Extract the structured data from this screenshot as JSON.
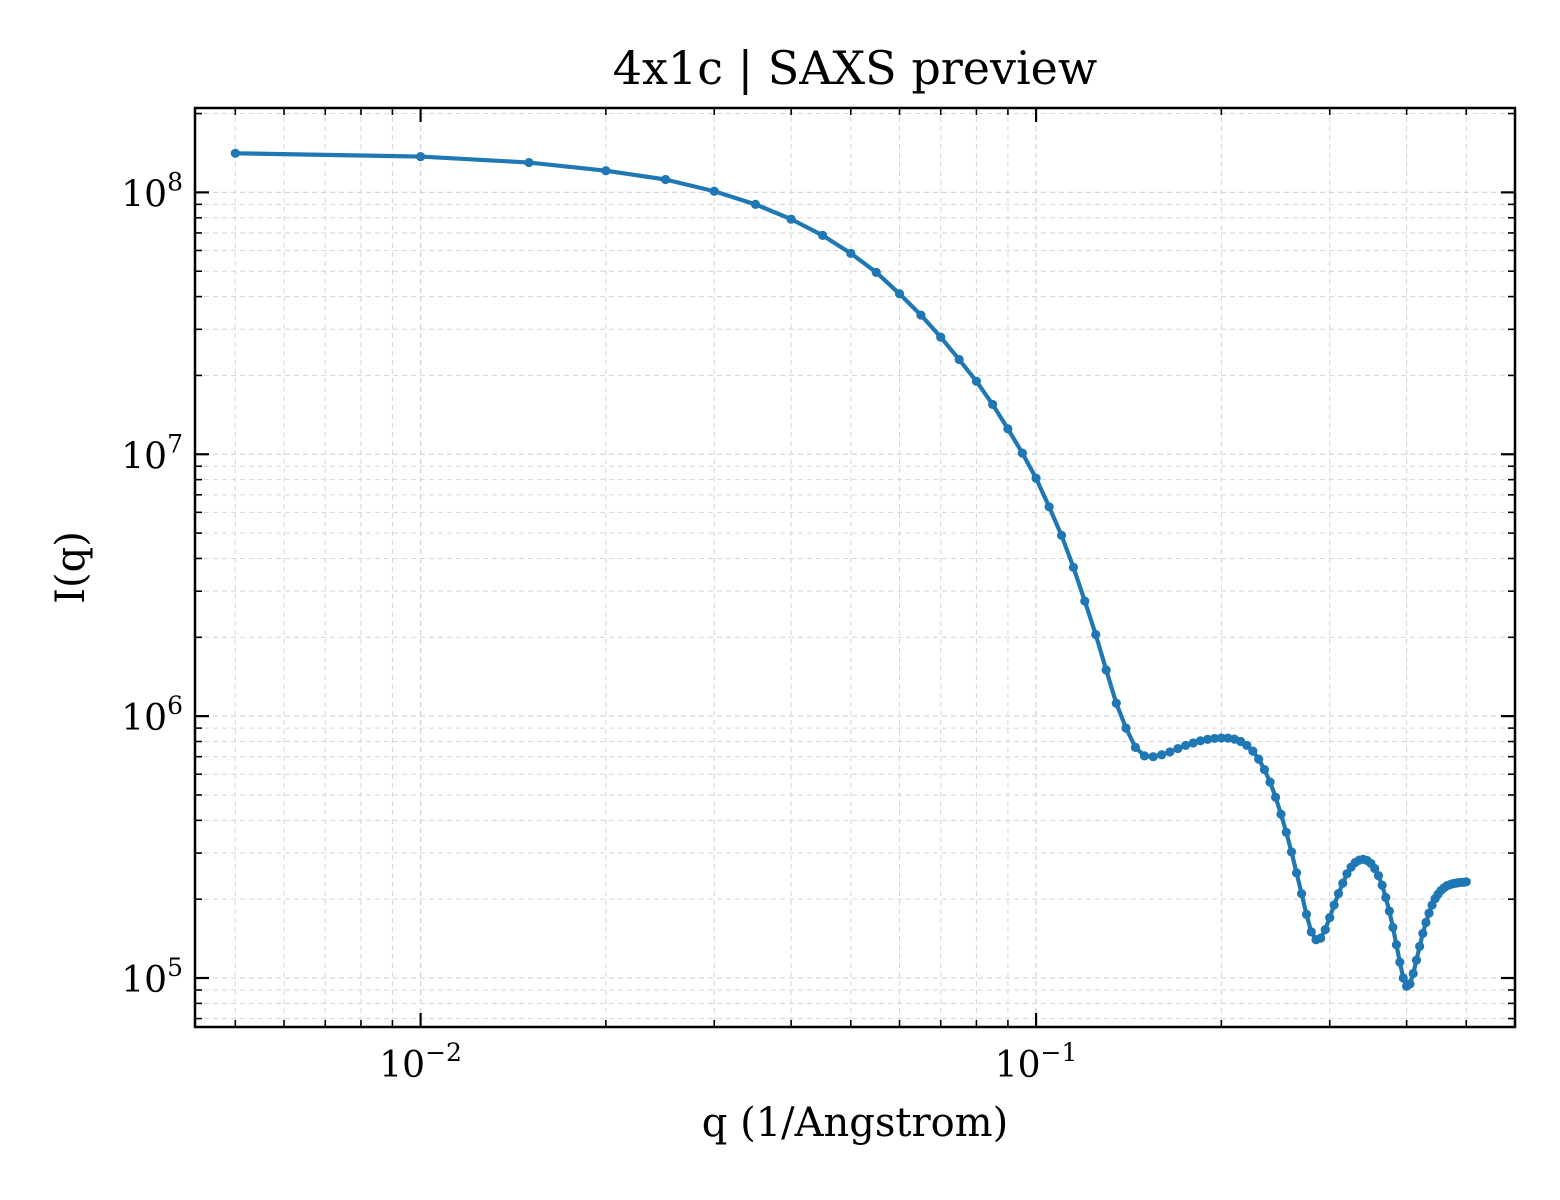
{
  "chart_data": {
    "type": "line",
    "title": "4x1c | SAXS preview",
    "xlabel": "q (1/Angstrom)",
    "ylabel": "I(q)",
    "xscale": "log",
    "yscale": "log",
    "xlim": [
      0.0043,
      0.6
    ],
    "ylim": [
      65000,
      210000000
    ],
    "grid": true,
    "legend": "none",
    "x_ticks": [
      {
        "base": "10",
        "exp": "−2",
        "value": 0.01
      },
      {
        "base": "10",
        "exp": "−1",
        "value": 0.1
      }
    ],
    "y_ticks": [
      {
        "base": "10",
        "exp": "5",
        "value": 100000
      },
      {
        "base": "10",
        "exp": "6",
        "value": 1000000
      },
      {
        "base": "10",
        "exp": "7",
        "value": 10000000
      },
      {
        "base": "10",
        "exp": "8",
        "value": 100000000
      }
    ],
    "colors": {
      "series": "#1f77b4",
      "grid": "#d6d6d6",
      "axes": "#000000"
    },
    "series": [
      {
        "x": [
          0.005,
          0.01,
          0.015,
          0.02,
          0.025,
          0.03,
          0.035,
          0.04,
          0.045,
          0.05,
          0.055,
          0.06,
          0.065,
          0.07,
          0.075,
          0.08,
          0.085,
          0.09,
          0.095,
          0.1,
          0.105,
          0.11,
          0.115,
          0.12,
          0.125,
          0.13,
          0.135,
          0.14,
          0.145,
          0.15,
          0.155,
          0.16,
          0.165,
          0.17,
          0.175,
          0.18,
          0.185,
          0.19,
          0.195,
          0.2,
          0.205,
          0.21,
          0.215,
          0.22,
          0.225,
          0.23,
          0.235,
          0.24,
          0.245,
          0.25,
          0.255,
          0.26,
          0.265,
          0.27,
          0.275,
          0.28,
          0.285,
          0.29,
          0.295,
          0.3,
          0.305,
          0.31,
          0.315,
          0.32,
          0.325,
          0.33,
          0.335,
          0.34,
          0.345,
          0.35,
          0.355,
          0.36,
          0.365,
          0.37,
          0.375,
          0.38,
          0.385,
          0.39,
          0.395,
          0.4,
          0.405,
          0.41,
          0.415,
          0.42,
          0.425,
          0.43,
          0.435,
          0.44,
          0.445,
          0.45,
          0.455,
          0.46,
          0.465,
          0.47,
          0.475,
          0.48,
          0.485,
          0.49,
          0.495,
          0.5
        ],
        "values": [
          141000000,
          137000000,
          130000000,
          121000000,
          112000000,
          101000000,
          90000000,
          79000000,
          68500000,
          58500000,
          49500000,
          41000000,
          34000000,
          28000000,
          23000000,
          19000000,
          15500000,
          12500000,
          10100000,
          8100000,
          6300000,
          4900000,
          3700000,
          2750000,
          2050000,
          1500000,
          1120000,
          900000,
          760000,
          705000,
          700000,
          712000,
          730000,
          752000,
          773000,
          790000,
          805000,
          815000,
          822000,
          825000,
          824000,
          817000,
          800000,
          773000,
          735000,
          685000,
          625000,
          560000,
          490000,
          422000,
          360000,
          303000,
          252000,
          210000,
          175000,
          150000,
          140000,
          142000,
          153000,
          170000,
          190000,
          210000,
          230000,
          250000,
          265000,
          276000,
          282000,
          284000,
          281000,
          274000,
          262000,
          246000,
          226000,
          203000,
          180000,
          156000,
          134000,
          115000,
          100000,
          93000,
          95000,
          104000,
          117000,
          132000,
          148000,
          163000,
          177000,
          190000,
          201000,
          209000,
          216000,
          221000,
          225000,
          227000,
          229000,
          230000,
          231000,
          232000,
          232000,
          233000
        ]
      }
    ]
  }
}
